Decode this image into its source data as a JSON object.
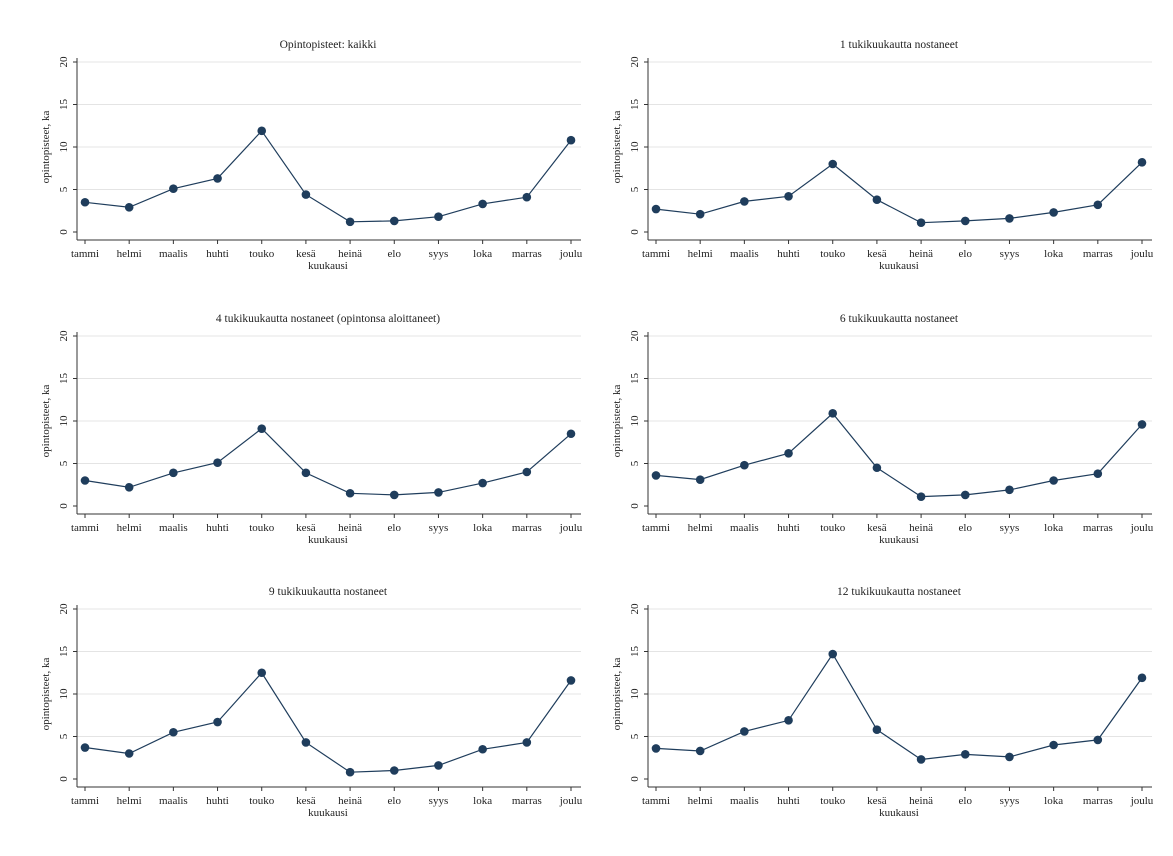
{
  "colors": {
    "series": "#1f3d5c",
    "grid": "#e4e4e4",
    "axis": "#333333",
    "background": "#ffffff"
  },
  "chart_data": [
    {
      "type": "line",
      "title": "Opintopisteet: kaikki",
      "xlabel": "kuukausi",
      "ylabel": "opintopisteet, ka",
      "ylim": [
        0,
        20
      ],
      "yticks": [
        "0",
        "5",
        "10",
        "15",
        "20"
      ],
      "grid": true,
      "categories": [
        "tammi",
        "helmi",
        "maalis",
        "huhti",
        "touko",
        "kesä",
        "heinä",
        "elo",
        "syys",
        "loka",
        "marras",
        "joulu"
      ],
      "values": [
        3.5,
        2.9,
        5.1,
        6.3,
        11.9,
        4.4,
        1.2,
        1.3,
        1.8,
        3.3,
        4.1,
        10.8
      ]
    },
    {
      "type": "line",
      "title": "1 tukikuukautta nostaneet",
      "xlabel": "kuukausi",
      "ylabel": "opintopisteet, ka",
      "ylim": [
        0,
        20
      ],
      "yticks": [
        "0",
        "5",
        "10",
        "15",
        "20"
      ],
      "grid": true,
      "categories": [
        "tammi",
        "helmi",
        "maalis",
        "huhti",
        "touko",
        "kesä",
        "heinä",
        "elo",
        "syys",
        "loka",
        "marras",
        "joulu"
      ],
      "values": [
        2.7,
        2.1,
        3.6,
        4.2,
        8.0,
        3.8,
        1.1,
        1.3,
        1.6,
        2.3,
        3.2,
        8.2
      ]
    },
    {
      "type": "line",
      "title": "4 tukikuukautta nostaneet (opintonsa aloittaneet)",
      "xlabel": "kuukausi",
      "ylabel": "opintopisteet, ka",
      "ylim": [
        0,
        20
      ],
      "yticks": [
        "0",
        "5",
        "10",
        "15",
        "20"
      ],
      "grid": true,
      "categories": [
        "tammi",
        "helmi",
        "maalis",
        "huhti",
        "touko",
        "kesä",
        "heinä",
        "elo",
        "syys",
        "loka",
        "marras",
        "joulu"
      ],
      "values": [
        3.0,
        2.2,
        3.9,
        5.1,
        9.1,
        3.9,
        1.5,
        1.3,
        1.6,
        2.7,
        4.0,
        8.5
      ]
    },
    {
      "type": "line",
      "title": "6 tukikuukautta nostaneet",
      "xlabel": "kuukausi",
      "ylabel": "opintopisteet, ka",
      "ylim": [
        0,
        20
      ],
      "yticks": [
        "0",
        "5",
        "10",
        "15",
        "20"
      ],
      "grid": true,
      "categories": [
        "tammi",
        "helmi",
        "maalis",
        "huhti",
        "touko",
        "kesä",
        "heinä",
        "elo",
        "syys",
        "loka",
        "marras",
        "joulu"
      ],
      "values": [
        3.6,
        3.1,
        4.8,
        6.2,
        10.9,
        4.5,
        1.1,
        1.3,
        1.9,
        3.0,
        3.8,
        9.6
      ]
    },
    {
      "type": "line",
      "title": "9 tukikuukautta nostaneet",
      "xlabel": "kuukausi",
      "ylabel": "opintopisteet, ka",
      "ylim": [
        0,
        20
      ],
      "yticks": [
        "0",
        "5",
        "10",
        "15",
        "20"
      ],
      "grid": true,
      "categories": [
        "tammi",
        "helmi",
        "maalis",
        "huhti",
        "touko",
        "kesä",
        "heinä",
        "elo",
        "syys",
        "loka",
        "marras",
        "joulu"
      ],
      "values": [
        3.7,
        3.0,
        5.5,
        6.7,
        12.5,
        4.3,
        0.8,
        1.0,
        1.6,
        3.5,
        4.3,
        11.6
      ]
    },
    {
      "type": "line",
      "title": "12 tukikuukautta nostaneet",
      "xlabel": "kuukausi",
      "ylabel": "opintopisteet, ka",
      "ylim": [
        0,
        20
      ],
      "yticks": [
        "0",
        "5",
        "10",
        "15",
        "20"
      ],
      "grid": true,
      "categories": [
        "tammi",
        "helmi",
        "maalis",
        "huhti",
        "touko",
        "kesä",
        "heinä",
        "elo",
        "syys",
        "loka",
        "marras",
        "joulu"
      ],
      "values": [
        3.6,
        3.3,
        5.6,
        6.9,
        14.7,
        5.8,
        2.3,
        2.9,
        2.6,
        4.0,
        4.6,
        11.9
      ]
    }
  ]
}
